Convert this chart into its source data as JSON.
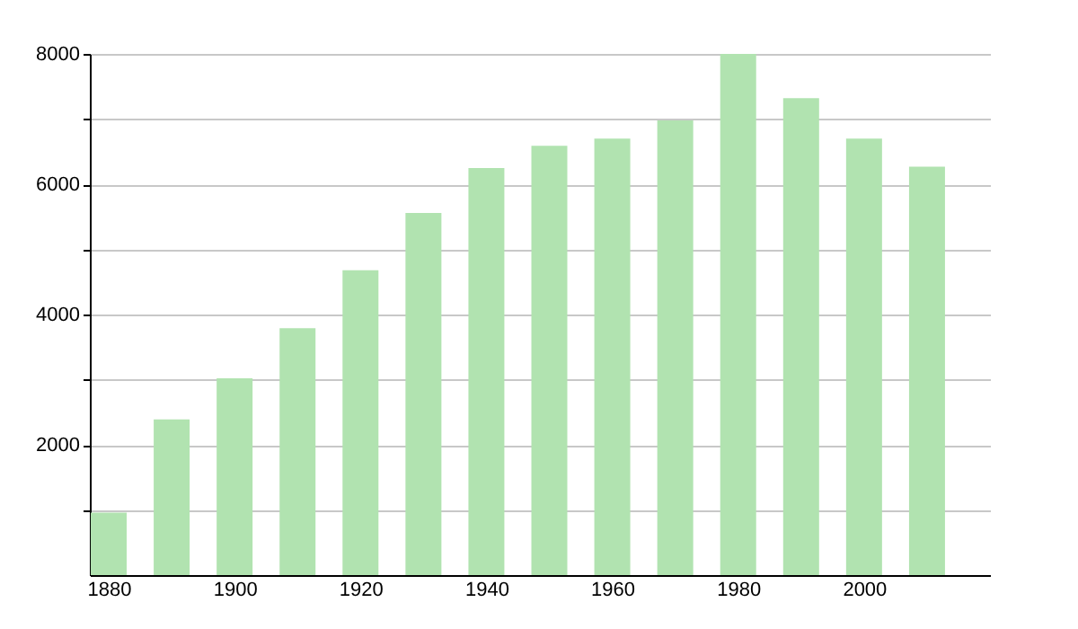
{
  "chart_data": {
    "type": "bar",
    "x": [
      1880,
      1890,
      1900,
      1910,
      1920,
      1930,
      1940,
      1950,
      1960,
      1970,
      1980,
      1990,
      2000,
      2010
    ],
    "values": [
      960,
      2390,
      3020,
      3790,
      4680,
      5560,
      6250,
      6590,
      6700,
      6980,
      8000,
      7320,
      6700,
      6270
    ],
    "color": "#b1e3b0",
    "xlim": [
      1877,
      2020
    ],
    "xticks": [
      1880,
      1900,
      1920,
      1940,
      1960,
      1980,
      2000
    ],
    "ylim": [
      0,
      8000
    ],
    "yticks": [
      {
        "value": 1000,
        "label": null
      },
      2000,
      {
        "value": 3000,
        "label": null
      },
      4000,
      {
        "value": 5000,
        "label": null
      },
      6000,
      {
        "value": 7000,
        "label": null
      },
      8000
    ],
    "grid": "y"
  }
}
